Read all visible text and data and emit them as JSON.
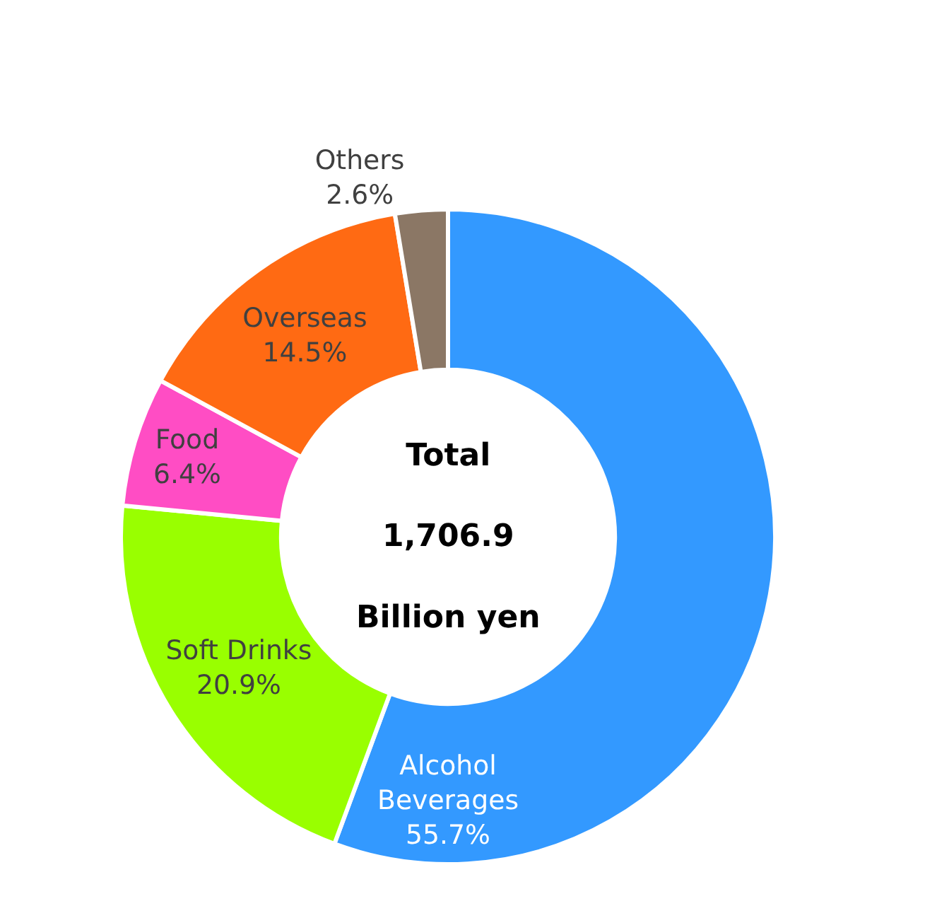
{
  "chart_data": {
    "type": "donut",
    "categories": [
      "Alcohol Beverages",
      "Soft Drinks",
      "Food",
      "Overseas",
      "Others"
    ],
    "values": [
      55.7,
      20.9,
      6.4,
      14.5,
      2.6
    ],
    "value_labels": [
      "55.7%",
      "20.9%",
      "6.4%",
      "14.5%",
      "2.6%"
    ],
    "colors": [
      "#3399ff",
      "#99ff00",
      "#ff4dc4",
      "#ff6a13",
      "#8b7765"
    ],
    "annotations": [
      "Total\n1,706.9\nBillion yen"
    ],
    "legend": false
  }
}
